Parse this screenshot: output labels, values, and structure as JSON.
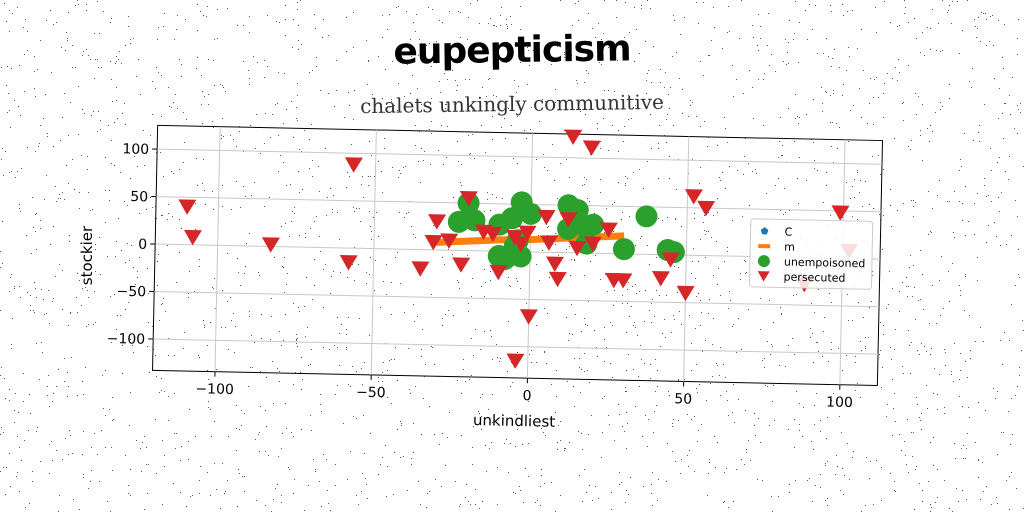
{
  "title": "eupepticism",
  "subtitle": "chalets unkingly communitive",
  "chart_data": {
    "type": "scatter",
    "xlabel": "unkindliest",
    "ylabel": "stockier",
    "xlim": [
      -120,
      112
    ],
    "ylim": [
      -133,
      125
    ],
    "xticks": [
      -100,
      -50,
      0,
      50,
      100
    ],
    "yticks": [
      -100,
      -50,
      0,
      50,
      100
    ],
    "grid": true,
    "legend_position": "right",
    "colors": {
      "C": "#1f77b4",
      "m": "#ff7f0e",
      "unempoisoned": "#2ca02c",
      "persecuted": "#d62728"
    },
    "series": [
      {
        "name": "C",
        "marker": "pentagon",
        "points": []
      },
      {
        "name": "m",
        "marker": "line",
        "points": [
          [
            -30,
            8
          ],
          [
            -20,
            10
          ],
          [
            -10,
            12
          ],
          [
            0,
            13
          ],
          [
            10,
            15
          ],
          [
            20,
            17
          ],
          [
            30,
            19
          ]
        ]
      },
      {
        "name": "unempoisoned",
        "marker": "circle",
        "points": [
          [
            -20,
            50
          ],
          [
            -23,
            30
          ],
          [
            -10,
            28
          ],
          [
            -4,
            12
          ],
          [
            -6,
            35
          ],
          [
            -3,
            52
          ],
          [
            0,
            40
          ],
          [
            -5,
            5
          ],
          [
            -3,
            -5
          ],
          [
            -10,
            -5
          ],
          [
            -8,
            -8
          ],
          [
            12,
            50
          ],
          [
            15,
            45
          ],
          [
            16,
            30
          ],
          [
            20,
            30
          ],
          [
            12,
            25
          ],
          [
            18,
            10
          ],
          [
            30,
            5
          ],
          [
            37,
            40
          ],
          [
            44,
            5
          ],
          [
            46,
            3
          ],
          [
            -18,
            32
          ]
        ]
      },
      {
        "name": "persecuted",
        "marker": "triangle-down",
        "points": [
          [
            -110,
            40
          ],
          [
            -108,
            8
          ],
          [
            -83,
            2
          ],
          [
            -57,
            88
          ],
          [
            -58,
            -15
          ],
          [
            -35,
            -20
          ],
          [
            -30,
            30
          ],
          [
            -31,
            8
          ],
          [
            -26,
            10
          ],
          [
            -22,
            -15
          ],
          [
            -20,
            55
          ],
          [
            -15,
            20
          ],
          [
            -12,
            18
          ],
          [
            -10,
            -22
          ],
          [
            -5,
            15
          ],
          [
            -3,
            8
          ],
          [
            -1,
            20
          ],
          [
            0,
            -68
          ],
          [
            -4,
            -115
          ],
          [
            5,
            37
          ],
          [
            6,
            10
          ],
          [
            8,
            -12
          ],
          [
            9,
            -28
          ],
          [
            12,
            35
          ],
          [
            13,
            122
          ],
          [
            19,
            111
          ],
          [
            20,
            10
          ],
          [
            25,
            25
          ],
          [
            27,
            -28
          ],
          [
            30,
            -28
          ],
          [
            42,
            -25
          ],
          [
            45,
            -5
          ],
          [
            50,
            -40
          ],
          [
            52,
            62
          ],
          [
            56,
            50
          ],
          [
            99,
            48
          ],
          [
            88,
            -28
          ],
          [
            102,
            8
          ],
          [
            15,
            5
          ]
        ]
      }
    ]
  }
}
